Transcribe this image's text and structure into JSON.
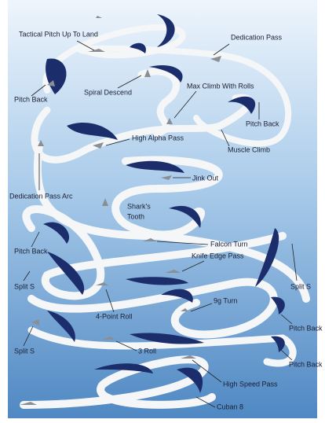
{
  "diagram": {
    "labels": [
      "Tactical Pitch Up To Land",
      "Dedication Pass",
      "Pitch Back",
      "Spiral Descend",
      "Max Climb With Rolls",
      "Pitch Back",
      "High Alpha Pass",
      "Muscle Climb",
      "Jink Out",
      "Dedication Pass Arc",
      "Shark's",
      "Tooth",
      "Falcon Turn",
      "Pitch Back",
      "Knife Edge Pass",
      "Split S",
      "Split S",
      "4-Point Roll",
      "9g Turn",
      "Pitch Back",
      "Split S",
      "3 Roll",
      "Pitch Back",
      "High Speed Pass",
      "Cuban 8"
    ]
  }
}
